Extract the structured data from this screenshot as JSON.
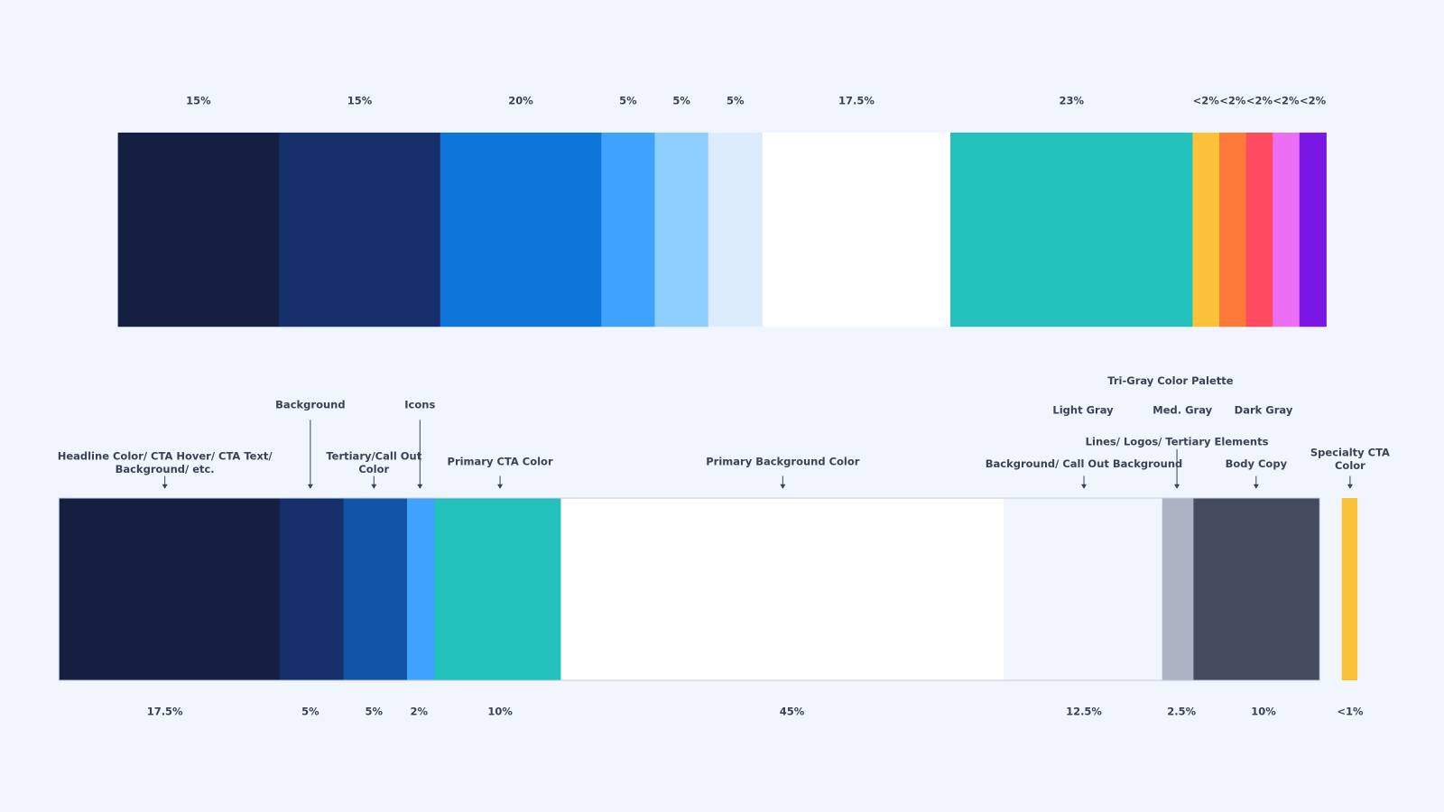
{
  "top_palette": {
    "segments": [
      {
        "label": "15%",
        "color": "#141f42"
      },
      {
        "label": "15%",
        "color": "#16306b"
      },
      {
        "label": "20%",
        "color": "#0e76d9"
      },
      {
        "label": "5%",
        "color": "#3fa3fe"
      },
      {
        "label": "5%",
        "color": "#8fcffe"
      },
      {
        "label": "5%",
        "color": "#dcecfd"
      },
      {
        "label": "17.5%",
        "color": "#ffffff"
      },
      {
        "label": "23%",
        "color": "#23c1bc"
      },
      {
        "label": "<2%",
        "color": "#fec13a"
      },
      {
        "label": "<2%",
        "color": "#fe7a3a"
      },
      {
        "label": "<2%",
        "color": "#fe4b60"
      },
      {
        "label": "<2%",
        "color": "#ec6ef5"
      },
      {
        "label": "<2%",
        "color": "#7b17e5"
      }
    ]
  },
  "bottom_palette": {
    "segments": [
      {
        "label": "17.5%",
        "color": "#141f42"
      },
      {
        "label": "5%",
        "color": "#16306b"
      },
      {
        "label": "5%",
        "color": "#1155a8"
      },
      {
        "label": "2%",
        "color": "#3fa3fe"
      },
      {
        "label": "10%",
        "color": "#23c1bc"
      },
      {
        "label": "45%",
        "color": "#ffffff"
      },
      {
        "label": "12.5%",
        "color": "#f1f5fe"
      },
      {
        "label": "2.5%",
        "color": "#aeb3c4"
      },
      {
        "label": "10%",
        "color": "#434b5c"
      },
      {
        "label": "<1%",
        "color": "#fbc13a"
      }
    ],
    "annotations": [
      {
        "lines": [
          "Headline Color/ CTA Hover/ CTA Text/",
          "Background/ etc."
        ]
      },
      {
        "lines": [
          "Background"
        ]
      },
      {
        "lines": [
          "Tertiary/Call Out",
          "Color"
        ]
      },
      {
        "lines": [
          "Icons"
        ]
      },
      {
        "lines": [
          "Primary CTA Color"
        ]
      },
      {
        "lines": [
          "Primary Background Color"
        ]
      },
      {
        "lines": [
          "Background/ Call Out Background"
        ]
      },
      {
        "lines": [
          "Lines/ Logos/ Tertiary Elements"
        ]
      },
      {
        "lines": [
          "Body Copy"
        ]
      },
      {
        "lines": [
          "Specialty CTA",
          "Color"
        ]
      }
    ],
    "headings": [
      "Tri-Gray Color Palette",
      "Light Gray",
      "Med. Gray",
      "Dark Gray"
    ]
  }
}
